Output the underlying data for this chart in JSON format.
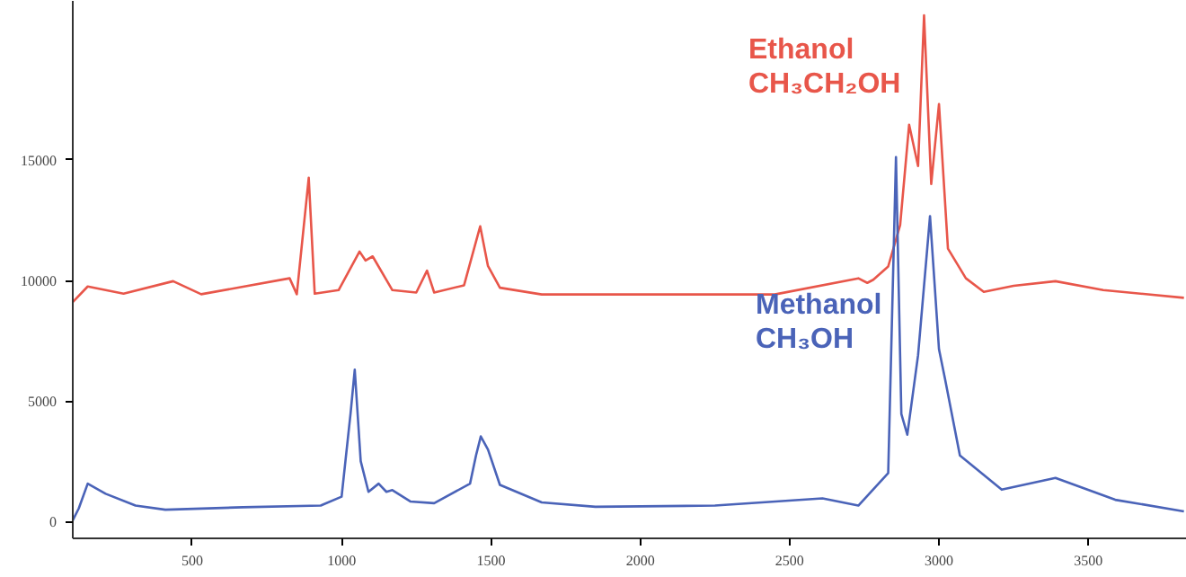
{
  "chart_data": {
    "type": "line",
    "xlim": [
      100,
      3830
    ],
    "ylim": [
      -700,
      21600
    ],
    "xticks": [
      500,
      1000,
      1500,
      2000,
      2500,
      3000,
      3500
    ],
    "yticks": [
      0,
      5000,
      10000,
      15000
    ],
    "grid": false,
    "marker": "none",
    "line_style": "solid",
    "series": [
      {
        "name": "Ethanol",
        "color": "#e8564a",
        "x": [
          100,
          150,
          270,
          436,
          530,
          826,
          850,
          890,
          910,
          990,
          1060,
          1080,
          1104,
          1170,
          1250,
          1286,
          1310,
          1410,
          1464,
          1490,
          1530,
          1670,
          2450,
          2730,
          2760,
          2780,
          2830,
          2870,
          2900,
          2930,
          2950,
          2974,
          3000,
          3030,
          3090,
          3150,
          3250,
          3390,
          3550,
          3820
        ],
        "values": [
          9100,
          9750,
          9450,
          9970,
          9430,
          10090,
          9430,
          14260,
          9450,
          9600,
          11200,
          10830,
          11000,
          9600,
          9500,
          10410,
          9500,
          9800,
          12250,
          10600,
          9700,
          9420,
          9420,
          10090,
          9900,
          10030,
          10580,
          12300,
          16460,
          14750,
          21000,
          14000,
          17320,
          11320,
          10090,
          9530,
          9780,
          9970,
          9600,
          9280
        ]
      },
      {
        "name": "Methanol",
        "color": "#4a63b8",
        "x": [
          100,
          120,
          150,
          210,
          310,
          410,
          670,
          930,
          1000,
          1030,
          1044,
          1064,
          1090,
          1124,
          1150,
          1170,
          1230,
          1310,
          1430,
          1450,
          1466,
          1490,
          1530,
          1670,
          1850,
          2250,
          2610,
          2730,
          2830,
          2856,
          2874,
          2894,
          2930,
          2970,
          3000,
          3020,
          3070,
          3210,
          3390,
          3590,
          3820
        ],
        "values": [
          50,
          540,
          1570,
          1150,
          660,
          490,
          590,
          660,
          1030,
          4480,
          6300,
          2500,
          1230,
          1570,
          1230,
          1300,
          830,
          760,
          1570,
          2740,
          3530,
          2990,
          1520,
          790,
          610,
          660,
          960,
          660,
          2010,
          15120,
          4460,
          3600,
          6900,
          12670,
          7150,
          5930,
          2740,
          1320,
          1810,
          900,
          420
        ]
      }
    ],
    "annotations": [
      "CH₃CH₂OH",
      "CH₃OH"
    ]
  }
}
